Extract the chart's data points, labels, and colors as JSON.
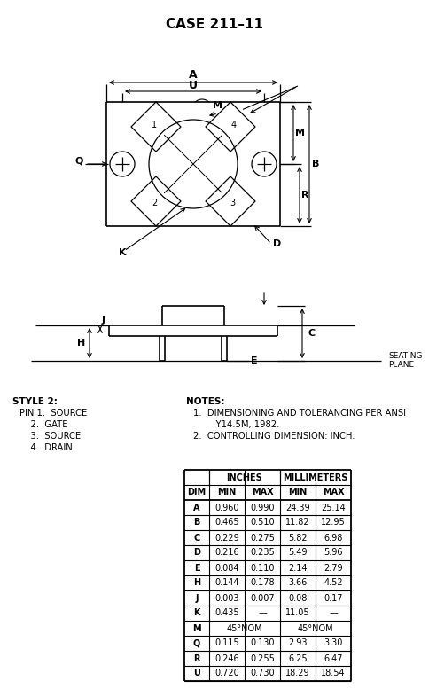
{
  "title": "CASE 211–11",
  "background_color": "#ffffff",
  "table_data": {
    "rows": [
      [
        "A",
        "0.960",
        "0.990",
        "24.39",
        "25.14"
      ],
      [
        "B",
        "0.465",
        "0.510",
        "11.82",
        "12.95"
      ],
      [
        "C",
        "0.229",
        "0.275",
        "5.82",
        "6.98"
      ],
      [
        "D",
        "0.216",
        "0.235",
        "5.49",
        "5.96"
      ],
      [
        "E",
        "0.084",
        "0.110",
        "2.14",
        "2.79"
      ],
      [
        "H",
        "0.144",
        "0.178",
        "3.66",
        "4.52"
      ],
      [
        "J",
        "0.003",
        "0.007",
        "0.08",
        "0.17"
      ],
      [
        "K",
        "0.435",
        "—",
        "11.05",
        "—"
      ],
      [
        "M",
        "45°NOM",
        "",
        "45°NOM",
        ""
      ],
      [
        "Q",
        "0.115",
        "0.130",
        "2.93",
        "3.30"
      ],
      [
        "R",
        "0.246",
        "0.255",
        "6.25",
        "6.47"
      ],
      [
        "U",
        "0.720",
        "0.730",
        "18.29",
        "18.54"
      ]
    ]
  },
  "style2_lines": [
    "STYLE 2:",
    "PIN 1.  SOURCE",
    "    2.  GATE",
    "    3.  SOURCE",
    "    4.  DRAIN"
  ],
  "notes_lines": [
    "NOTES:",
    "1.  DIMENSIONING AND TOLERANCING PER ANSI",
    "     Y14.5M, 1982.",
    "2.  CONTROLLING DIMENSION: INCH."
  ]
}
